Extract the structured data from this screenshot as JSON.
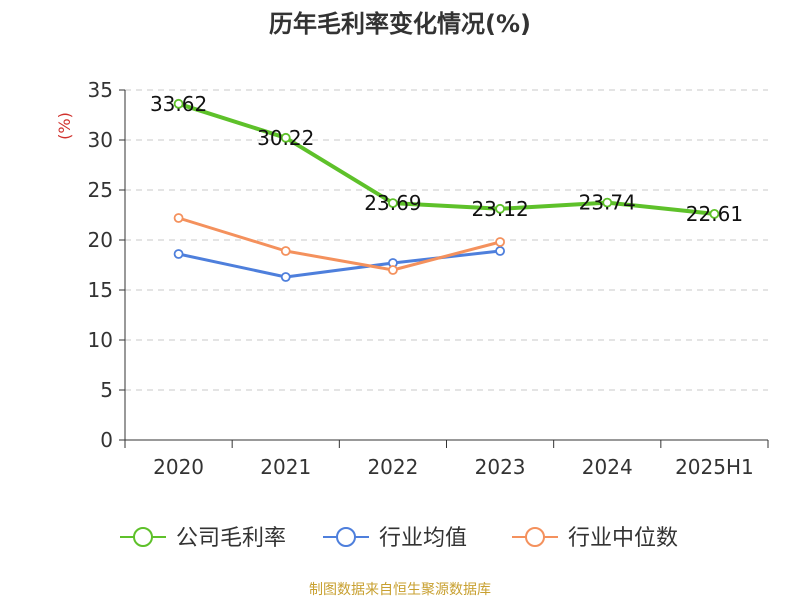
{
  "chart_data": {
    "type": "line",
    "title": "历年毛利率变化情况(%)",
    "ylabel": "(%)",
    "xlabel": "",
    "categories": [
      "2020",
      "2021",
      "2022",
      "2023",
      "2024",
      "2025H1"
    ],
    "ylim": [
      0,
      35
    ],
    "yticks": [
      0,
      5,
      10,
      15,
      20,
      25,
      30,
      35
    ],
    "grid": true,
    "legend_position": "bottom",
    "series": [
      {
        "name": "公司毛利率",
        "color": "#5ec12a",
        "show_labels": true,
        "values": [
          33.62,
          30.22,
          23.69,
          23.12,
          23.74,
          22.61
        ],
        "labels": [
          "33.62",
          "30.22",
          "23.69",
          "23.12",
          "23.74",
          "22.61"
        ]
      },
      {
        "name": "行业均值",
        "color": "#4e7fdc",
        "show_labels": false,
        "values": [
          18.6,
          16.3,
          17.7,
          18.9,
          null,
          null
        ]
      },
      {
        "name": "行业中位数",
        "color": "#f4915d",
        "show_labels": false,
        "values": [
          22.2,
          18.9,
          17.0,
          19.8,
          null,
          null
        ]
      }
    ]
  },
  "source_note": "制图数据来自恒生聚源数据库",
  "colors": {
    "ylabel": "#d0312d",
    "grid": "#c8c8c8",
    "axis": "#333333"
  }
}
